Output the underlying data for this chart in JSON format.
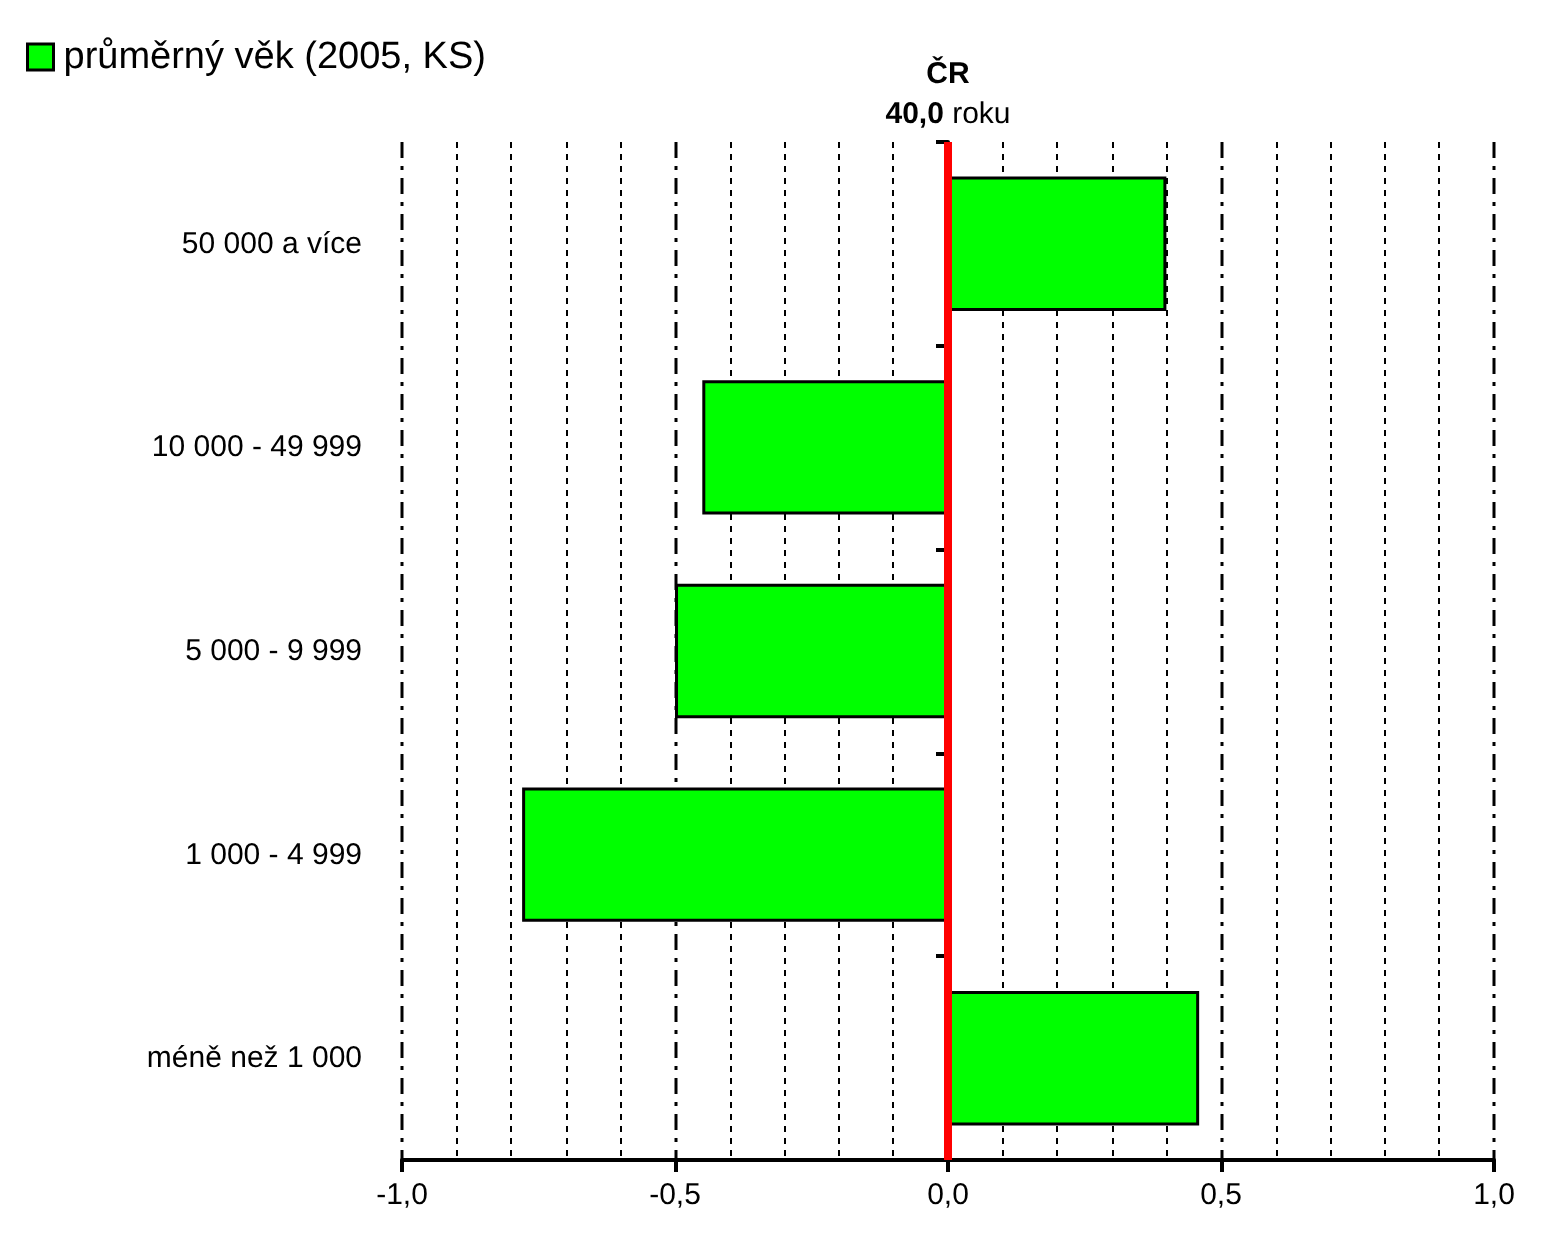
{
  "chart_data": {
    "type": "bar",
    "orientation": "horizontal",
    "categories": [
      "50 000 a více",
      "10 000 - 49 999",
      "5 000 - 9 999",
      "1 000 - 4 999",
      "méně než 1 000"
    ],
    "series": [
      {
        "name": "průměrný věk (2005, KS)",
        "color": "#00ff00",
        "values": [
          0.4,
          -0.45,
          -0.5,
          -0.78,
          0.46
        ]
      }
    ],
    "xlim": [
      -1,
      1
    ],
    "xticks": [
      {
        "value": -1,
        "label": "-1,0"
      },
      {
        "value": -0.5,
        "label": "-0,5"
      },
      {
        "value": 0,
        "label": "0,0"
      },
      {
        "value": 0.5,
        "label": "0,5"
      },
      {
        "value": 1,
        "label": "1,0"
      }
    ],
    "grid": "x",
    "legend": "top left",
    "ref_lines": [
      {
        "axis": "x",
        "value": 0,
        "label": "ČR\n40,0 roku",
        "color": "#ff0000",
        "line_style": "solid"
      }
    ]
  }
}
